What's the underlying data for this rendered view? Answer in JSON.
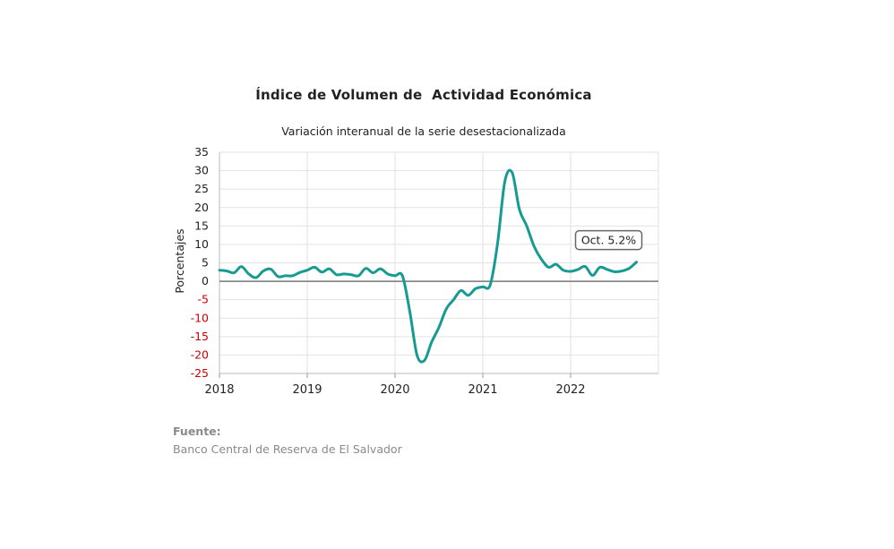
{
  "title": "Índice de Volumen de  Actividad Económica",
  "subtitle": "Variación interanual de la serie desestacionalizada",
  "source": {
    "label": "Fuente:",
    "text": "Banco Central de Reserva de El Salvador"
  },
  "colors": {
    "line": "#169a92",
    "negative_tick": "#cc0000",
    "positive_tick": "#222222",
    "zero_line": "#777777",
    "grid": "#e2e2e2"
  },
  "chart_data": {
    "type": "line",
    "title": "Índice de Volumen de  Actividad Económica",
    "subtitle": "Variación interanual de la serie desestacionalizada",
    "xlabel": "",
    "ylabel": "Porcentajes",
    "ylim": [
      -25,
      35
    ],
    "yticks": [
      35,
      30,
      25,
      20,
      15,
      10,
      5,
      0,
      -5,
      -10,
      -15,
      -20,
      -25
    ],
    "xticks": [
      "2018",
      "2019",
      "2020",
      "2021",
      "2022"
    ],
    "grid": true,
    "annotation": {
      "label": "Oct. 5.2%",
      "x": "2022-10",
      "y": 5.2
    },
    "series": [
      {
        "x": [
          "2018-01",
          "2018-02",
          "2018-03",
          "2018-04",
          "2018-05",
          "2018-06",
          "2018-07",
          "2018-08",
          "2018-09",
          "2018-10",
          "2018-11",
          "2018-12",
          "2019-01",
          "2019-02",
          "2019-03",
          "2019-04",
          "2019-05",
          "2019-06",
          "2019-07",
          "2019-08",
          "2019-09",
          "2019-10",
          "2019-11",
          "2019-12",
          "2020-01",
          "2020-02",
          "2020-03",
          "2020-04",
          "2020-05",
          "2020-06",
          "2020-07",
          "2020-08",
          "2020-09",
          "2020-10",
          "2020-11",
          "2020-12",
          "2021-01",
          "2021-02",
          "2021-03",
          "2021-04",
          "2021-05",
          "2021-06",
          "2021-07",
          "2021-08",
          "2021-09",
          "2021-10",
          "2021-11",
          "2021-12",
          "2022-01",
          "2022-02",
          "2022-03",
          "2022-04",
          "2022-05",
          "2022-06",
          "2022-07",
          "2022-08",
          "2022-09",
          "2022-10"
        ],
        "values": [
          3.0,
          2.8,
          2.3,
          4.0,
          2.0,
          1.0,
          2.8,
          3.3,
          1.3,
          1.5,
          1.5,
          2.4,
          3.0,
          3.8,
          2.5,
          3.4,
          1.8,
          2.0,
          1.8,
          1.5,
          3.5,
          2.3,
          3.4,
          2.0,
          1.5,
          1.5,
          -8.0,
          -20.0,
          -21.5,
          -16.5,
          -12.5,
          -7.5,
          -5.0,
          -2.5,
          -3.8,
          -2.0,
          -1.5,
          -1.0,
          10.0,
          27.0,
          29.5,
          19.5,
          15.0,
          9.5,
          6.0,
          3.8,
          4.6,
          3.0,
          2.7,
          3.2,
          4.0,
          1.6,
          3.8,
          3.2,
          2.6,
          2.8,
          3.5,
          5.2
        ]
      }
    ]
  }
}
